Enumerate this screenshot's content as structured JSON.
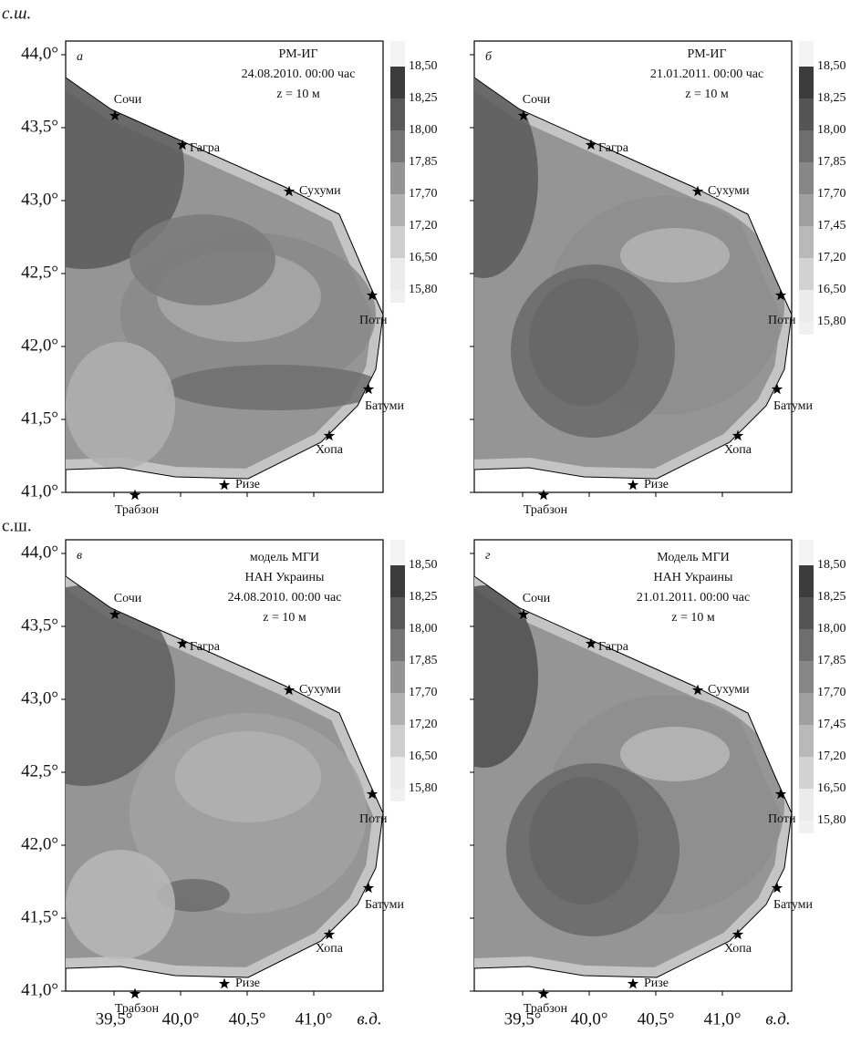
{
  "lat_label_top": "с.ш.",
  "lat_label_bottom": "с.ш.",
  "lon_label_left": "в.д.",
  "lon_label_right": "в.д.",
  "yticks_top": [
    "44,0°",
    "43,5°",
    "43,0°",
    "42,5°",
    "42,0°",
    "41,5°",
    "41,0°"
  ],
  "yticks_bottom": [
    "44,0°",
    "43,5°",
    "43,0°",
    "42,5°",
    "42,0°",
    "41,5°",
    "41,0°"
  ],
  "xticks_left": [
    "39,5°",
    "40,0°",
    "40,5°",
    "41,0°"
  ],
  "xticks_right": [
    "39,5°",
    "40,0°",
    "40,5°",
    "41,0°"
  ],
  "panels": [
    {
      "letter": "а",
      "title": [
        "РМ-ИГ",
        "24.08.2010. 00:00 час",
        "z = 10 м"
      ],
      "cities": [
        "Сочи",
        "Гагра",
        "Сухуми",
        "Поти",
        "Батуми",
        "Хопа",
        "Ризе",
        "Трабзон"
      ],
      "colorbar": [
        "18,50",
        "18,25",
        "18,00",
        "17,85",
        "17,70",
        "17,20",
        "16,50",
        "15,80"
      ]
    },
    {
      "letter": "б",
      "title": [
        "РМ-ИГ",
        "21.01.2011. 00:00 час",
        "z = 10 м"
      ],
      "cities": [
        "Сочи",
        "Гагра",
        "Сухуми",
        "Поти",
        "Батуми",
        "Хопа",
        "Ризе",
        "Трабзон"
      ],
      "colorbar": [
        "18,50",
        "18,25",
        "18,00",
        "17,85",
        "17,70",
        "17,45",
        "17,20",
        "16,50",
        "15,80"
      ]
    },
    {
      "letter": "в",
      "title": [
        "модель МГИ",
        "НАН Украины",
        "24.08.2010. 00:00 час",
        "z = 10 м"
      ],
      "cities": [
        "Сочи",
        "Гагра",
        "Сухуми",
        "Поти",
        "Батуми",
        "Хопа",
        "Ризе",
        "Трабзон"
      ],
      "colorbar": [
        "18,50",
        "18,25",
        "18,00",
        "17,85",
        "17,70",
        "17,20",
        "16,50",
        "15,80"
      ]
    },
    {
      "letter": "г",
      "title": [
        "Модель МГИ",
        "НАН Украины",
        "21.01.2011. 00:00 час",
        "z = 10 м"
      ],
      "cities": [
        "Сочи",
        "Гагра",
        "Сухуми",
        "Поти",
        "Батуми",
        "Хопа",
        "Ризе",
        "Трабзон"
      ],
      "colorbar": [
        "18,50",
        "18,25",
        "18,00",
        "17,85",
        "17,70",
        "17,45",
        "17,20",
        "16,50",
        "15,80"
      ]
    }
  ]
}
